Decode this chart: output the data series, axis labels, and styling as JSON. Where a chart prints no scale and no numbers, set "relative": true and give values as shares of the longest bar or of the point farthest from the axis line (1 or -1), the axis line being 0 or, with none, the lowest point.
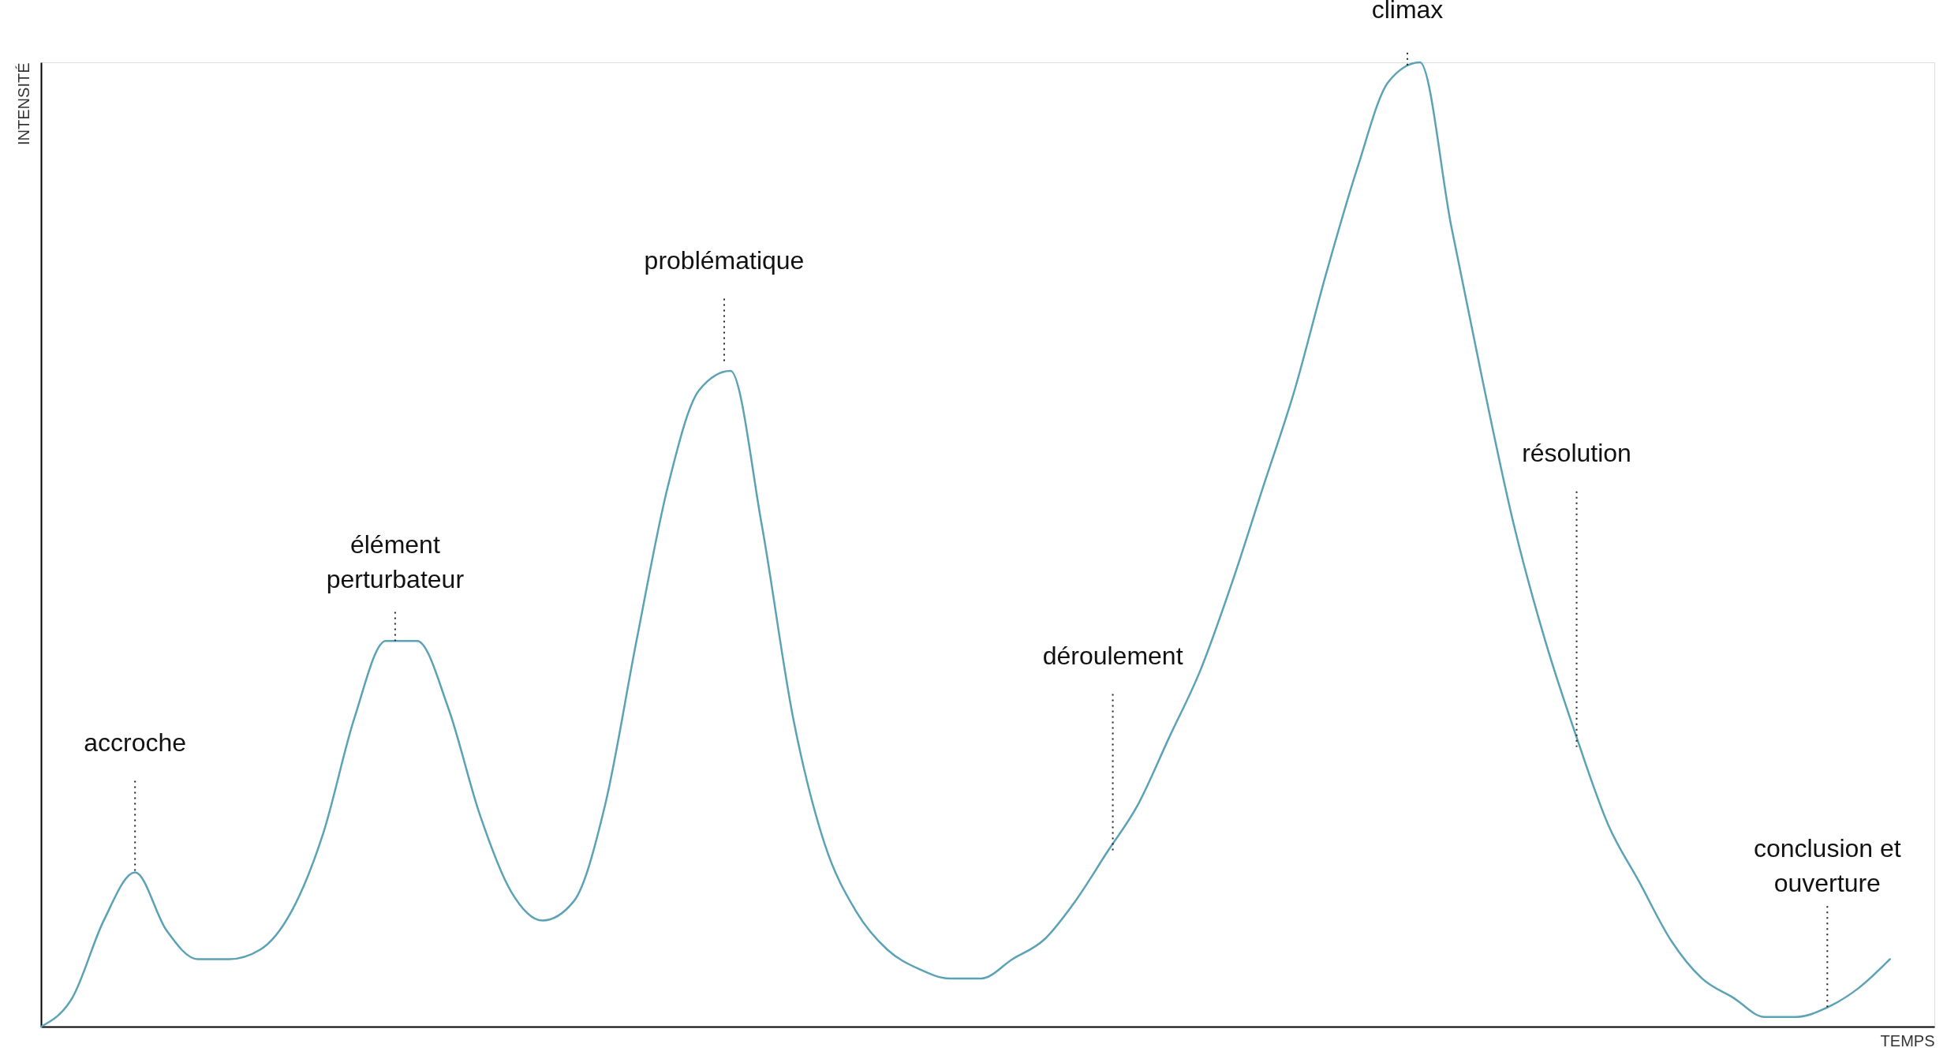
{
  "chart_data": {
    "type": "line",
    "relative": true,
    "xlabel": "TEMPS",
    "ylabel": "INTENSITÉ",
    "categories": [
      null,
      null,
      null,
      null,
      null,
      null,
      null,
      null,
      null,
      null,
      null,
      null,
      null,
      null,
      null,
      null,
      null,
      null,
      null,
      null,
      null,
      null,
      null,
      null,
      null,
      null,
      null,
      null,
      null,
      null,
      null,
      null,
      null,
      null,
      null,
      null,
      null,
      null,
      null,
      null,
      null,
      null,
      null,
      null,
      null,
      null,
      null,
      null,
      null,
      null,
      null,
      null,
      null,
      null,
      null,
      null,
      null,
      null,
      null,
      null
    ],
    "series": [
      {
        "color": "#5ba3b4",
        "values": [
          0,
          0.03,
          0.11,
          0.16,
          0.1,
          0.07,
          0.07,
          0.08,
          0.12,
          0.2,
          0.32,
          0.4,
          0.4,
          0.33,
          0.22,
          0.14,
          0.11,
          0.13,
          0.23,
          0.4,
          0.56,
          0.66,
          0.68,
          0.52,
          0.32,
          0.19,
          0.12,
          0.08,
          0.06,
          0.05,
          0.05,
          0.07,
          0.09,
          0.13,
          0.18,
          0.23,
          0.3,
          0.37,
          0.46,
          0.56,
          0.66,
          0.78,
          0.89,
          0.98,
          1,
          0.83,
          0.67,
          0.52,
          0.4,
          0.3,
          0.21,
          0.15,
          0.09,
          0.05,
          0.03,
          0.01,
          0.01,
          0.02,
          0.04,
          0.07
        ]
      }
    ],
    "annotations": [
      "accroche",
      "élément perturbateur",
      "problématique",
      "déroulement",
      "climax",
      "résolution",
      "conclusion et ouverture"
    ]
  }
}
